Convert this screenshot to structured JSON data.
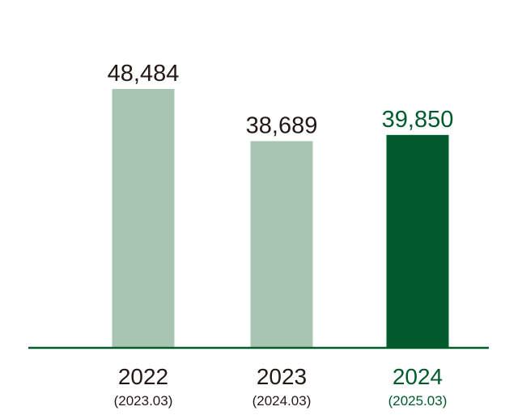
{
  "chart_data": {
    "type": "bar",
    "categories": [
      "2022",
      "2023",
      "2024"
    ],
    "category_sublabels": [
      "(2023.03)",
      "(2024.03)",
      "(2025.03)"
    ],
    "values": [
      48484,
      38689,
      39850
    ],
    "value_labels": [
      "48,484",
      "38,689",
      "39,850"
    ],
    "title": "",
    "xlabel": "",
    "ylabel": "",
    "ylim": [
      0,
      50000
    ],
    "grid": false,
    "legend": "none",
    "highlight_index": 2
  },
  "colors": {
    "bar_default": "#a8c5b2",
    "bar_highlight": "#005a2b",
    "text_default": "#231815",
    "text_highlight": "#005a2b",
    "axis": "#005a2b"
  }
}
